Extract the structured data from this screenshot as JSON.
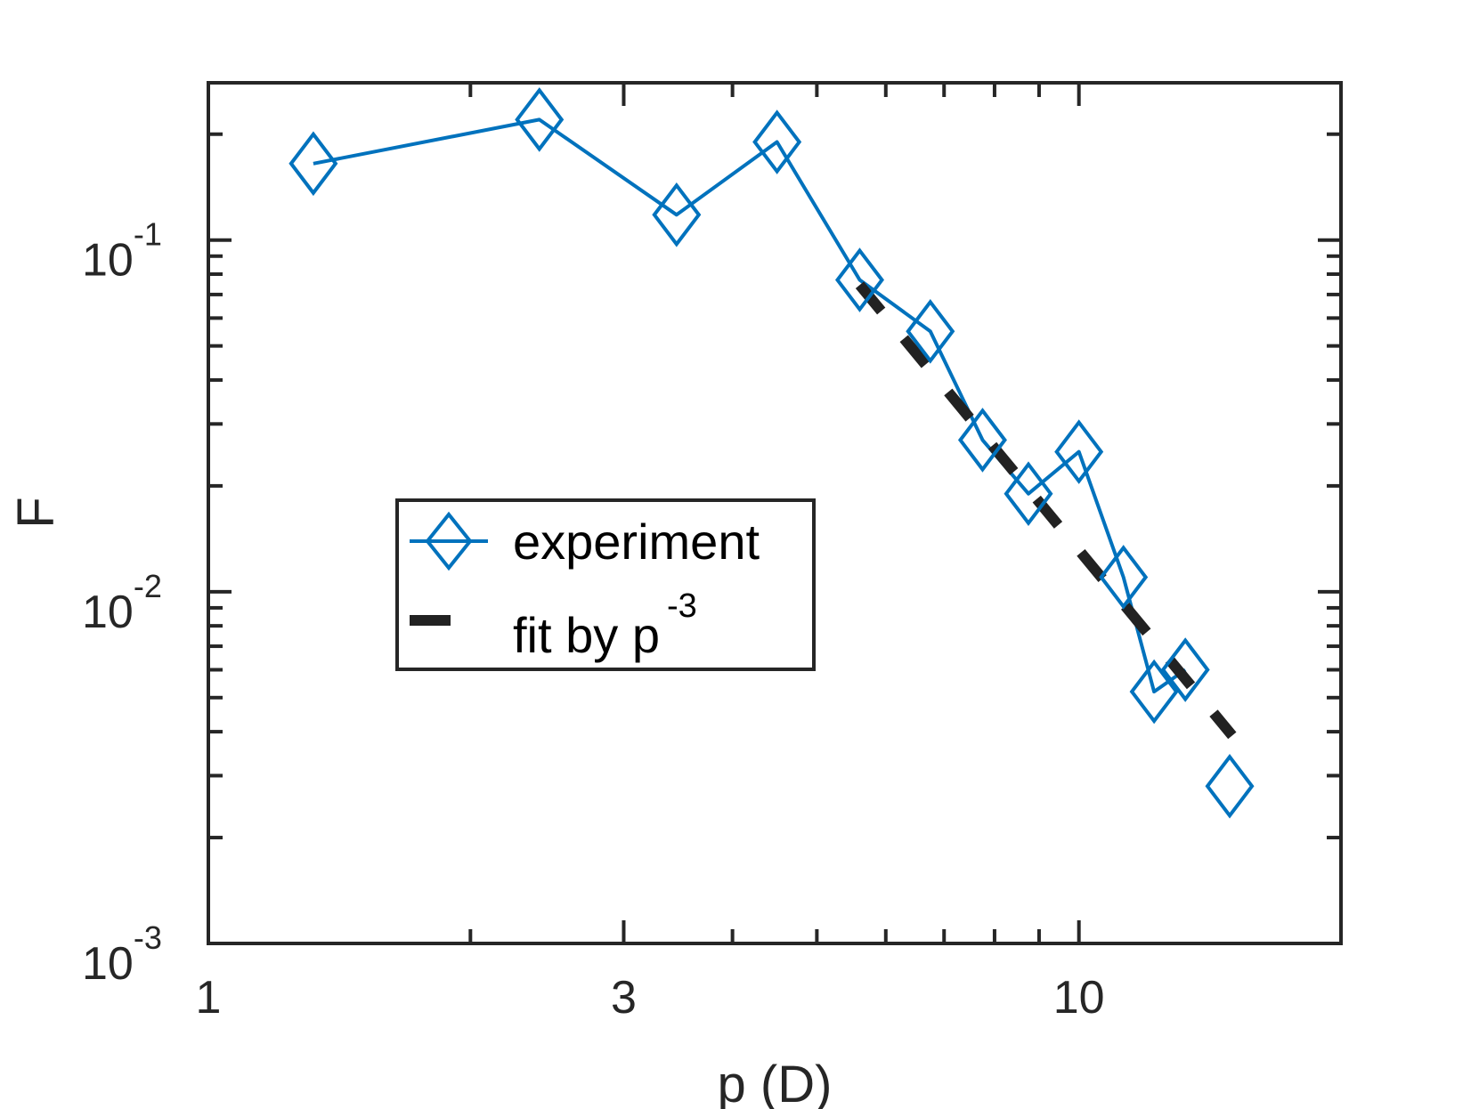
{
  "chart_data": {
    "type": "line",
    "xlabel": "p (D)",
    "ylabel": "F",
    "x_scale": "log",
    "y_scale": "log",
    "xlim": [
      1,
      20
    ],
    "ylim": [
      0.001,
      0.28
    ],
    "x_ticks": [
      {
        "value": 1,
        "label": "1"
      },
      {
        "value": 3,
        "label": "3"
      },
      {
        "value": 10,
        "label": "10"
      }
    ],
    "y_ticks": [
      {
        "value": 0.001,
        "base": "10",
        "exp": "-3"
      },
      {
        "value": 0.01,
        "base": "10",
        "exp": "-2"
      },
      {
        "value": 0.1,
        "base": "10",
        "exp": "-1"
      }
    ],
    "series": [
      {
        "name": "experiment",
        "color": "#0072BD",
        "style": "solid-line-diamond-markers",
        "x": [
          1.32,
          2.4,
          3.45,
          4.5,
          5.6,
          6.75,
          7.75,
          8.75,
          10.0,
          11.25,
          12.2,
          13.25,
          14.9
        ],
        "y": [
          0.165,
          0.22,
          0.118,
          0.19,
          0.077,
          0.055,
          0.027,
          0.019,
          0.025,
          0.011,
          0.0052,
          0.006,
          0.0028
        ],
        "marker_only_points": 1
      },
      {
        "name": "fit by p",
        "name_superscript": "-3",
        "color": "#222222",
        "style": "dashed",
        "x": [
          5.6,
          15.0
        ],
        "y": [
          0.0745,
          0.0039
        ]
      }
    ],
    "legend": "center-left",
    "grid": false
  }
}
